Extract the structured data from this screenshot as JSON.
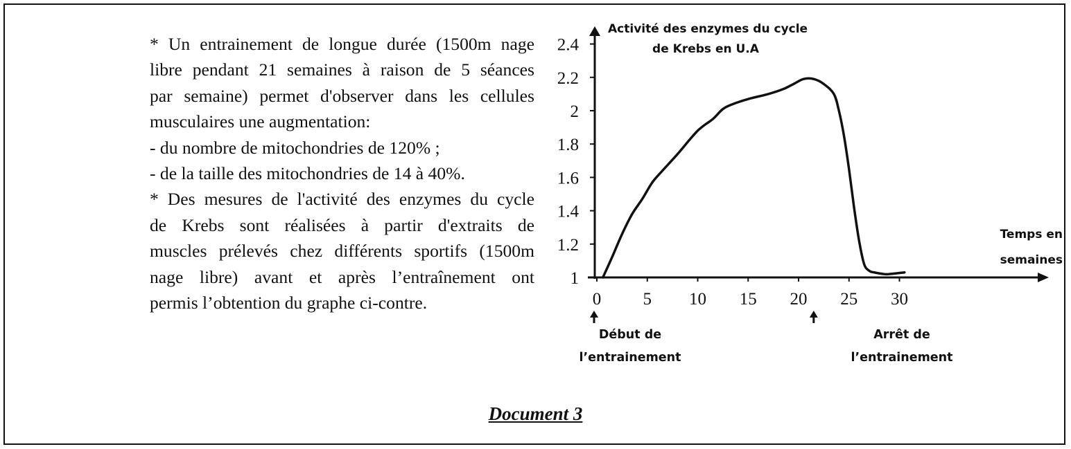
{
  "text": {
    "lines": [
      "* Un entrainement de longue durée (1500m nage",
      "libre  pendant 21 semaines à raison de 5 séances",
      "par semaine) permet d'observer dans les cellules",
      "musculaires une augmentation:",
      "-  du nombre de mitochondries de 120% ;",
      "- de la taille des mitochondries de 14 à 40%.",
      "* Des mesures de l'activité des enzymes du cycle",
      "de Krebs sont réalisées à partir d'extraits de",
      "muscles prélevés chez différents sportifs (1500m",
      "nage libre) avant et après l’entraînement ont",
      "permis l’obtention du graphe ci-contre."
    ]
  },
  "document_title": "Document 3",
  "chart_data": {
    "type": "line",
    "title": "",
    "ylabel_lines": [
      "Activité des enzymes du cycle",
      "de Krebs en U.A"
    ],
    "xlabel_lines": [
      "Temps en",
      "semaines"
    ],
    "xlim": [
      0,
      30
    ],
    "ylim": [
      1,
      2.4
    ],
    "x_ticks": [
      "0",
      "5",
      "10",
      "15",
      "20",
      "25",
      "30"
    ],
    "y_ticks": [
      "1",
      "1.2",
      "1.4",
      "1.6",
      "1.8",
      "2",
      "2.2",
      "2.4"
    ],
    "grid": false,
    "series": [
      {
        "name": "Activité des enzymes",
        "x": [
          0.6,
          1.5,
          2.5,
          3.5,
          4.5,
          5.5,
          6.5,
          8,
          10,
          11.5,
          12.5,
          13.5,
          15,
          17,
          18.5,
          19.5,
          20.5,
          21.5,
          22.5,
          23.5,
          24,
          24.5,
          25,
          25.5,
          26,
          26.5,
          27,
          27.5,
          28.5,
          29,
          30.5
        ],
        "y": [
          1.0,
          1.12,
          1.26,
          1.38,
          1.47,
          1.57,
          1.64,
          1.74,
          1.88,
          1.95,
          2.01,
          2.04,
          2.07,
          2.1,
          2.13,
          2.16,
          2.19,
          2.19,
          2.16,
          2.1,
          2.0,
          1.85,
          1.65,
          1.42,
          1.22,
          1.08,
          1.04,
          1.03,
          1.02,
          1.02,
          1.03
        ]
      }
    ],
    "annotations": [
      {
        "x": 0,
        "lines": [
          "Début de",
          "l’entrainement"
        ]
      },
      {
        "x": 21.5,
        "lines": [
          "Arrêt de",
          "l’entrainement"
        ]
      }
    ]
  },
  "colors": {
    "ink": "#111111",
    "background": "#ffffff"
  }
}
